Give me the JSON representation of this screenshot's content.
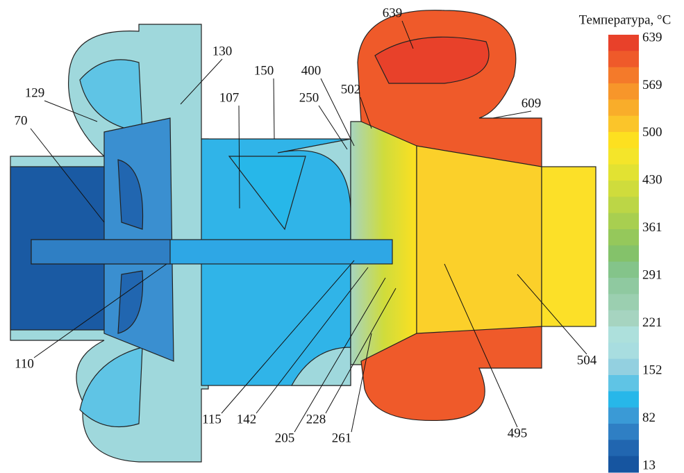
{
  "colorbar": {
    "title": "Температура, °C",
    "labels": [
      "639",
      "569",
      "500",
      "430",
      "361",
      "291",
      "221",
      "152",
      "82",
      "13"
    ],
    "colors": [
      "#e8412a",
      "#ef5a2a",
      "#f47a2a",
      "#f7962a",
      "#f9ad2a",
      "#fbc52a",
      "#fde020",
      "#f4e52a",
      "#e2e232",
      "#cfdc3c",
      "#bcd646",
      "#a8cf50",
      "#95c85b",
      "#84c26a",
      "#84c48a",
      "#8fc9a0",
      "#9bcfb0",
      "#a6d4c0",
      "#ade0dc",
      "#a8dde0",
      "#93d0e0",
      "#5fc4e5",
      "#27b7e9",
      "#3a9ad6",
      "#2f7fc4",
      "#2166b0",
      "#1655a0"
    ]
  },
  "annotations": [
    "639",
    "130",
    "129",
    "150",
    "400",
    "502",
    "107",
    "250",
    "70",
    "609",
    "504",
    "110",
    "115",
    "142",
    "205",
    "228",
    "261",
    "495"
  ]
}
